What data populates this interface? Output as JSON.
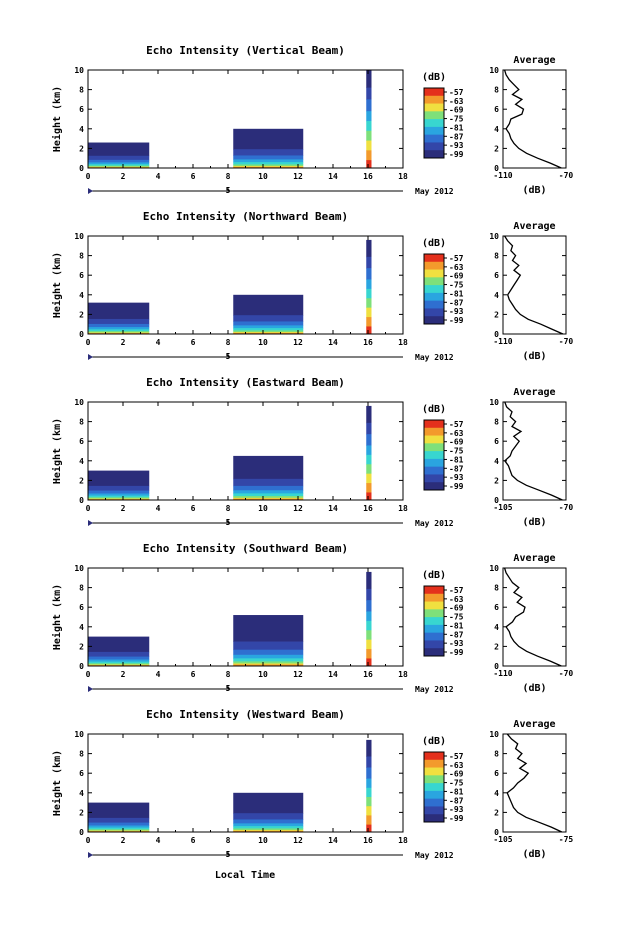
{
  "figure": {
    "xlabel": "Local Time",
    "date_label": "May 2012",
    "date_tick": "5",
    "avg_title": "Average",
    "avg_xlabel": "(dB)",
    "cbar_label": "(dB)"
  },
  "colormap": [
    "#2b2d7a",
    "#3346a8",
    "#2f6fd0",
    "#2aa5e0",
    "#38d6d0",
    "#7ee07a",
    "#f0e040",
    "#f39a2c",
    "#e4301c"
  ],
  "chart_data": [
    {
      "type": "heatmap",
      "title": "Echo Intensity (Vertical Beam)",
      "ylabel": "Height (km)",
      "xlim": [
        0,
        18
      ],
      "ylim": [
        0,
        10
      ],
      "xticks": [
        0,
        2,
        4,
        6,
        8,
        10,
        12,
        14,
        16,
        18
      ],
      "yticks": [
        0,
        2,
        4,
        6,
        8,
        10
      ],
      "cbar_ticks": [
        "-57",
        "-63",
        "-69",
        "-75",
        "-81",
        "-87",
        "-93",
        "-99"
      ],
      "segments": [
        {
          "x0": 0,
          "x1": 3.5,
          "top": 2.6
        },
        {
          "x0": 8.3,
          "x1": 12.3,
          "top": 4.0
        },
        {
          "x0": 15.9,
          "x1": 16.2,
          "top": 10.0
        }
      ],
      "average": {
        "xlim": [
          -110,
          -70
        ],
        "xticks": [
          -110,
          -70
        ],
        "yticks": [
          0,
          2,
          4,
          6,
          8,
          10
        ],
        "height": [
          0,
          0.5,
          1,
          1.5,
          2,
          2.5,
          3,
          3.5,
          4,
          4.5,
          5,
          5.5,
          6,
          6.5,
          7,
          7.5,
          8,
          8.5,
          9,
          9.5,
          10
        ],
        "value": [
          -73,
          -80,
          -88,
          -95,
          -100,
          -103,
          -105,
          -106,
          -108,
          -106,
          -105,
          -98,
          -97,
          -102,
          -98,
          -104,
          -100,
          -103,
          -106,
          -108,
          -109
        ]
      }
    },
    {
      "type": "heatmap",
      "title": "Echo Intensity (Northward Beam)",
      "ylabel": "Height (km)",
      "xlim": [
        0,
        18
      ],
      "ylim": [
        0,
        10
      ],
      "xticks": [
        0,
        2,
        4,
        6,
        8,
        10,
        12,
        14,
        16,
        18
      ],
      "yticks": [
        0,
        2,
        4,
        6,
        8,
        10
      ],
      "cbar_ticks": [
        "-57",
        "-63",
        "-69",
        "-75",
        "-81",
        "-87",
        "-93",
        "-99"
      ],
      "segments": [
        {
          "x0": 0,
          "x1": 3.5,
          "top": 3.2
        },
        {
          "x0": 8.3,
          "x1": 12.3,
          "top": 4.0
        },
        {
          "x0": 15.9,
          "x1": 16.2,
          "top": 9.6
        }
      ],
      "average": {
        "xlim": [
          -110,
          -70
        ],
        "xticks": [
          -110,
          -70
        ],
        "yticks": [
          0,
          2,
          4,
          6,
          8,
          10
        ],
        "height": [
          0,
          0.5,
          1,
          1.5,
          2,
          2.5,
          3,
          3.5,
          4,
          4.5,
          5,
          5.5,
          6,
          6.5,
          7,
          7.5,
          8,
          8.5,
          9,
          9.5,
          10
        ],
        "value": [
          -72,
          -79,
          -86,
          -94,
          -99,
          -102,
          -104,
          -106,
          -107,
          -105,
          -103,
          -101,
          -99,
          -103,
          -100,
          -104,
          -102,
          -105,
          -104,
          -107,
          -109
        ]
      }
    },
    {
      "type": "heatmap",
      "title": "Echo Intensity (Eastward Beam)",
      "ylabel": "Height (km)",
      "xlim": [
        0,
        18
      ],
      "ylim": [
        0,
        10
      ],
      "xticks": [
        0,
        2,
        4,
        6,
        8,
        10,
        12,
        14,
        16,
        18
      ],
      "yticks": [
        0,
        2,
        4,
        6,
        8,
        10
      ],
      "cbar_ticks": [
        "-57",
        "-63",
        "-69",
        "-75",
        "-81",
        "-87",
        "-93",
        "-99"
      ],
      "segments": [
        {
          "x0": 0,
          "x1": 3.5,
          "top": 3.0
        },
        {
          "x0": 8.3,
          "x1": 12.3,
          "top": 4.5
        },
        {
          "x0": 15.9,
          "x1": 16.2,
          "top": 9.6
        }
      ],
      "average": {
        "xlim": [
          -105,
          -70
        ],
        "xticks": [
          -105,
          -70
        ],
        "yticks": [
          0,
          2,
          4,
          6,
          8,
          10
        ],
        "height": [
          0,
          0.5,
          1,
          1.5,
          2,
          2.5,
          3,
          3.5,
          4,
          4.5,
          5,
          5.5,
          6,
          6.5,
          7,
          7.5,
          8,
          8.5,
          9,
          9.5,
          10
        ],
        "value": [
          -72,
          -78,
          -85,
          -92,
          -97,
          -100,
          -101,
          -102,
          -104,
          -101,
          -100,
          -98,
          -96,
          -99,
          -95,
          -100,
          -98,
          -101,
          -100,
          -103,
          -104
        ]
      }
    },
    {
      "type": "heatmap",
      "title": "Echo Intensity (Southward Beam)",
      "ylabel": "Height (km)",
      "xlim": [
        0,
        18
      ],
      "ylim": [
        0,
        10
      ],
      "xticks": [
        0,
        2,
        4,
        6,
        8,
        10,
        12,
        14,
        16,
        18
      ],
      "yticks": [
        0,
        2,
        4,
        6,
        8,
        10
      ],
      "cbar_ticks": [
        "-57",
        "-63",
        "-69",
        "-75",
        "-81",
        "-87",
        "-93",
        "-99"
      ],
      "segments": [
        {
          "x0": 0,
          "x1": 3.5,
          "top": 3.0
        },
        {
          "x0": 8.3,
          "x1": 12.3,
          "top": 5.2
        },
        {
          "x0": 15.9,
          "x1": 16.2,
          "top": 9.6
        }
      ],
      "average": {
        "xlim": [
          -110,
          -70
        ],
        "xticks": [
          -110,
          -70
        ],
        "yticks": [
          0,
          2,
          4,
          6,
          8,
          10
        ],
        "height": [
          0,
          0.5,
          1,
          1.5,
          2,
          2.5,
          3,
          3.5,
          4,
          4.5,
          5,
          5.5,
          6,
          6.5,
          7,
          7.5,
          8,
          8.5,
          9,
          9.5,
          10
        ],
        "value": [
          -73,
          -80,
          -88,
          -95,
          -100,
          -103,
          -105,
          -106,
          -108,
          -104,
          -102,
          -97,
          -96,
          -101,
          -98,
          -103,
          -100,
          -104,
          -106,
          -108,
          -109
        ]
      }
    },
    {
      "type": "heatmap",
      "title": "Echo Intensity (Westward Beam)",
      "ylabel": "Height (km)",
      "xlim": [
        0,
        18
      ],
      "ylim": [
        0,
        10
      ],
      "xticks": [
        0,
        2,
        4,
        6,
        8,
        10,
        12,
        14,
        16,
        18
      ],
      "yticks": [
        0,
        2,
        4,
        6,
        8,
        10
      ],
      "cbar_ticks": [
        "-57",
        "-63",
        "-69",
        "-75",
        "-81",
        "-87",
        "-93",
        "-99"
      ],
      "segments": [
        {
          "x0": 0,
          "x1": 3.5,
          "top": 3.0
        },
        {
          "x0": 8.3,
          "x1": 12.3,
          "top": 4.0
        },
        {
          "x0": 15.9,
          "x1": 16.2,
          "top": 9.4
        }
      ],
      "average": {
        "xlim": [
          -105,
          -75
        ],
        "xticks": [
          -105,
          -75
        ],
        "yticks": [
          0,
          2,
          4,
          6,
          8,
          10
        ],
        "height": [
          0,
          0.5,
          1,
          1.5,
          2,
          2.5,
          3,
          3.5,
          4,
          4.5,
          5,
          5.5,
          6,
          6.5,
          7,
          7.5,
          8,
          8.5,
          9,
          9.5,
          10
        ],
        "value": [
          -77,
          -82,
          -88,
          -94,
          -98,
          -100,
          -101,
          -102,
          -103,
          -100,
          -98,
          -95,
          -93,
          -97,
          -94,
          -98,
          -96,
          -99,
          -98,
          -101,
          -103
        ]
      }
    }
  ]
}
